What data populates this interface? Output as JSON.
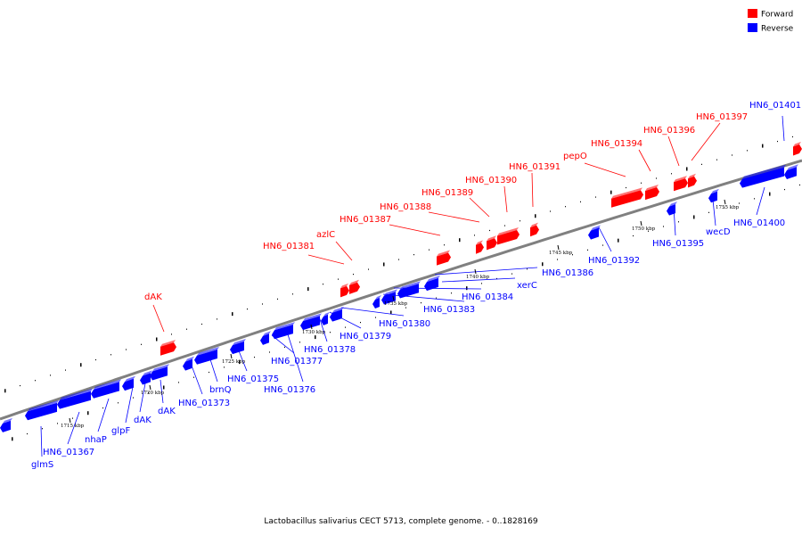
{
  "caption": "Lactobacillus salivarius CECT 5713, complete genome. - 0..1828169",
  "legend": [
    {
      "label": "Forward",
      "color": "#ff0000"
    },
    {
      "label": "Reverse",
      "color": "#0000ff"
    }
  ],
  "colors": {
    "forward": "#ff0000",
    "reverse": "#0000ff",
    "backbone": "#808080",
    "leader_forward": "#ff0000",
    "leader_reverse": "#0000ff"
  },
  "ticks": [
    {
      "label": "1715 kbp"
    },
    {
      "label": "1720 kbp"
    },
    {
      "label": "1725 kbp"
    },
    {
      "label": "1730 kbp"
    },
    {
      "label": "1735 kbp"
    },
    {
      "label": "1740 kbp"
    },
    {
      "label": "1745 kbp"
    },
    {
      "label": "1750 kbp"
    },
    {
      "label": "1755 kbp"
    }
  ],
  "forward_labels": [
    "dAK",
    "HN6_01381",
    "azlC",
    "HN6_01387",
    "HN6_01388",
    "HN6_01389",
    "HN6_01390",
    "HN6_01391",
    "pepO",
    "HN6_01394",
    "HN6_01396",
    "HN6_01397"
  ],
  "reverse_labels": [
    "glmS",
    "HN6_01367",
    "nhaP",
    "glpF",
    "dAK",
    "dAK",
    "HN6_01373",
    "brnQ",
    "HN6_01375",
    "HN6_01376",
    "HN6_01377",
    "HN6_01378",
    "HN6_01379",
    "HN6_01380",
    "HN6_01383",
    "HN6_01384",
    "xerC",
    "HN6_01386",
    "HN6_01392",
    "HN6_01395",
    "wecD",
    "HN6_01400",
    "HN6_01401"
  ]
}
